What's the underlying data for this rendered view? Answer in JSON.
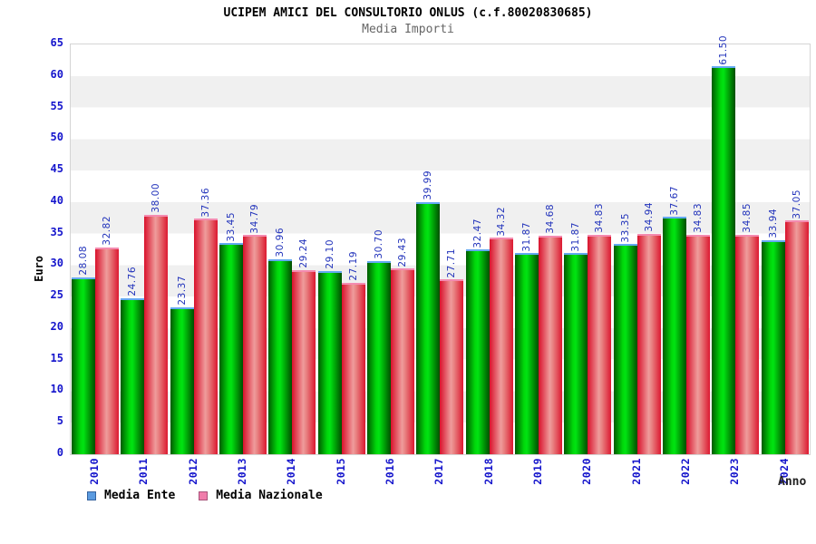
{
  "header": {
    "title": "UCIPEM AMICI DEL CONSULTORIO ONLUS (c.f.80020830685)",
    "subtitle": "Media Importi"
  },
  "chart_data": {
    "type": "bar",
    "title": "UCIPEM AMICI DEL CONSULTORIO ONLUS (c.f.80020830685)",
    "subtitle": "Media Importi",
    "xlabel": "Anno",
    "ylabel": "Euro",
    "ylim": [
      0,
      65
    ],
    "ytick_step": 5,
    "grid": "alternating-bands-every-5",
    "legend_position": "bottom-left",
    "categories": [
      "2010",
      "2011",
      "2012",
      "2013",
      "2014",
      "2015",
      "2016",
      "2017",
      "2018",
      "2019",
      "2020",
      "2021",
      "2022",
      "2023",
      "2024"
    ],
    "series": [
      {
        "name": "Media Ente",
        "bar_color": "green-gradient",
        "bar_main_hex": "#00d80a",
        "bar_cap_hex": "#64a9f2",
        "legend_swatch_hex": "#5b9be0",
        "values": [
          28.08,
          24.76,
          23.37,
          33.45,
          30.96,
          29.1,
          30.7,
          39.99,
          32.47,
          31.87,
          31.87,
          33.35,
          37.67,
          61.5,
          33.94
        ]
      },
      {
        "name": "Media Nazionale",
        "bar_color": "red-gradient",
        "bar_main_hex": "#e8112d",
        "bar_cap_hex": "#f48bb0",
        "legend_swatch_hex": "#f07dab",
        "values": [
          32.82,
          38.0,
          37.36,
          34.79,
          29.24,
          27.19,
          29.43,
          27.71,
          34.32,
          34.68,
          34.83,
          34.94,
          34.83,
          34.85,
          37.05
        ]
      }
    ],
    "value_label_color": "#2233bb",
    "tick_label_color": "#1515cc",
    "band_color": "#f0f0f0"
  }
}
